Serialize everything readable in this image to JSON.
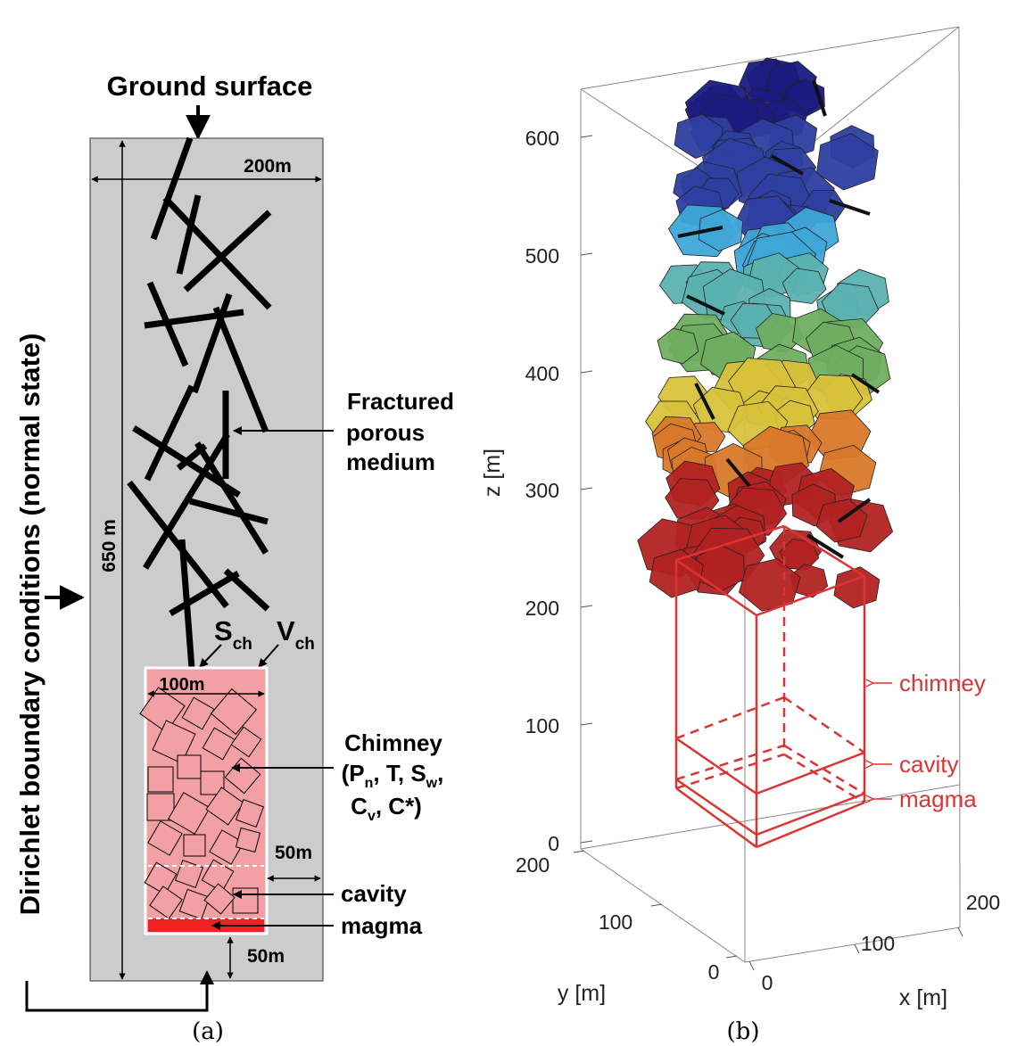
{
  "panel_a": {
    "caption": "(a)",
    "ground_surface": "Ground surface",
    "boundary": "Dirichlet boundary conditions (normal state)",
    "width_label": "200m",
    "height_label": "650 m",
    "fractured": [
      "Fractured",
      "porous",
      "medium"
    ],
    "s_ch": {
      "main": "S",
      "sub": "ch"
    },
    "v_ch": {
      "main": "V",
      "sub": "ch"
    },
    "chimney_width": "100m",
    "chimney": {
      "title": "Chimney",
      "line1": {
        "a": "(P",
        "a_sub": "n",
        "b": ", T, S",
        "b_sub": "w",
        "c": ","
      },
      "line2": {
        "a": "C",
        "a_sub": "v",
        "b": ", C*)"
      }
    },
    "side_gap": "50m",
    "bottom_gap": "50m",
    "cavity": "cavity",
    "magma": "magma",
    "colors": {
      "gray": "#cccccc",
      "chimney": "#f3a0a4",
      "magma": "#ee2222"
    }
  },
  "panel_b": {
    "caption": "(b)",
    "z_label": "z [m]",
    "y_label": "y [m]",
    "x_label": "x [m]",
    "z_ticks": [
      "0",
      "100",
      "200",
      "300",
      "400",
      "500",
      "600"
    ],
    "y_ticks": [
      "0",
      "100",
      "200"
    ],
    "x_ticks": [
      "0",
      "100",
      "200"
    ],
    "labels": {
      "chimney": "chimney",
      "cavity": "cavity",
      "magma": "magma"
    },
    "colors": {
      "red": "#dd3333",
      "dark_blue": "#1a1a80",
      "light_blue": "#3fa6d8",
      "green": "#6fae60",
      "yellow": "#d8c23a",
      "dark_red": "#b22222"
    }
  }
}
